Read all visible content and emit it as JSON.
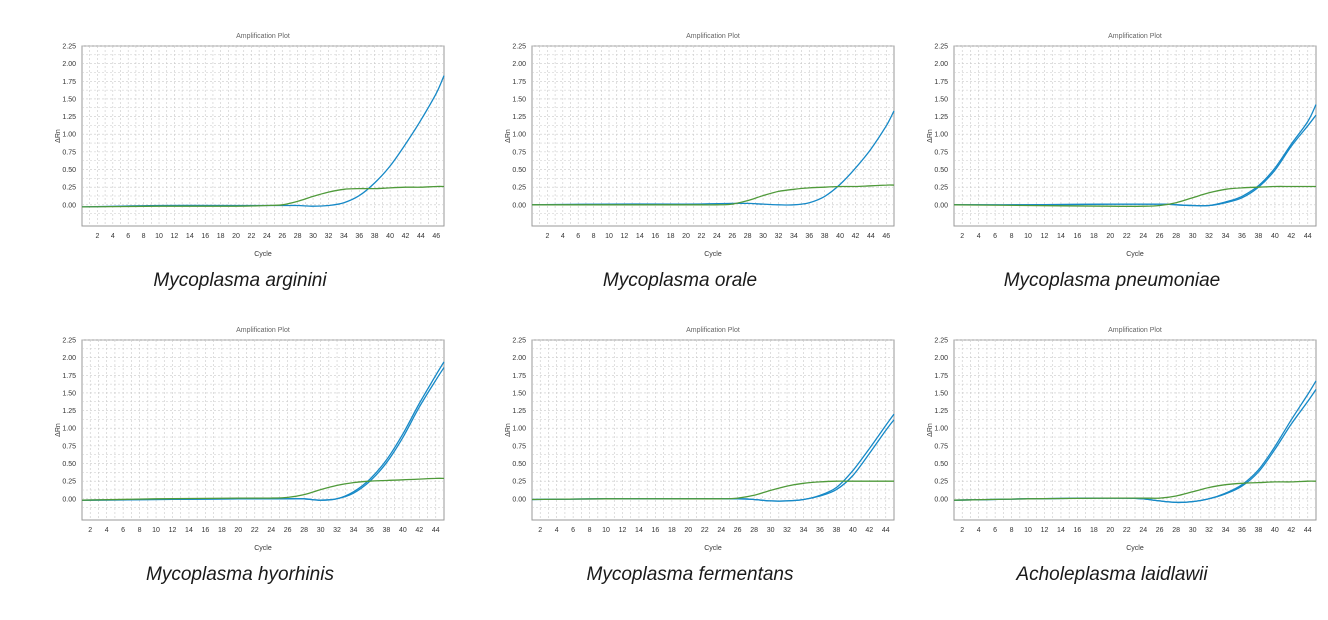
{
  "colors": {
    "target": "#1689c7",
    "control": "#4f9a3a",
    "grid": "#c9c9c9",
    "axis": "#9a9a9a",
    "text": "#333333"
  },
  "chart_data": [
    {
      "type": "line",
      "title": "Amplification Plot",
      "xlabel": "Cycle",
      "ylabel": "ΔRn",
      "caption": "Mycoplasma arginini",
      "xlim": [
        0,
        47
      ],
      "ylim": [
        -0.3,
        2.25
      ],
      "xticks": [
        "2",
        "4",
        "6",
        "8",
        "10",
        "12",
        "14",
        "16",
        "18",
        "20",
        "22",
        "24",
        "26",
        "28",
        "30",
        "32",
        "34",
        "36",
        "38",
        "40",
        "42",
        "44",
        "46"
      ],
      "yticks": [
        "0.00",
        "0.25",
        "0.50",
        "0.75",
        "1.00",
        "1.25",
        "1.50",
        "1.75",
        "2.00",
        "2.25"
      ],
      "series": [
        {
          "color": "#1689c7",
          "x": [
            0,
            10,
            20,
            26,
            28,
            30,
            32,
            34,
            36,
            38,
            40,
            42,
            44,
            46,
            47
          ],
          "y": [
            -0.03,
            -0.01,
            -0.01,
            -0.01,
            -0.01,
            -0.02,
            -0.01,
            0.03,
            0.13,
            0.31,
            0.55,
            0.86,
            1.2,
            1.58,
            1.83
          ]
        },
        {
          "color": "#4f9a3a",
          "x": [
            0,
            10,
            20,
            24,
            26,
            28,
            30,
            32,
            34,
            36,
            38,
            40,
            42,
            44,
            46,
            47
          ],
          "y": [
            -0.03,
            -0.02,
            -0.02,
            -0.01,
            0.0,
            0.05,
            0.12,
            0.18,
            0.22,
            0.23,
            0.23,
            0.24,
            0.25,
            0.25,
            0.26,
            0.26
          ]
        }
      ]
    },
    {
      "type": "line",
      "title": "Amplification Plot",
      "xlabel": "Cycle",
      "ylabel": "ΔRn",
      "caption": "Mycoplasma orale",
      "xlim": [
        0,
        47
      ],
      "ylim": [
        -0.3,
        2.25
      ],
      "xticks": [
        "2",
        "4",
        "6",
        "8",
        "10",
        "12",
        "14",
        "16",
        "18",
        "20",
        "22",
        "24",
        "26",
        "28",
        "30",
        "32",
        "34",
        "36",
        "38",
        "40",
        "42",
        "44",
        "46"
      ],
      "yticks": [
        "0.00",
        "0.25",
        "0.50",
        "0.75",
        "1.00",
        "1.25",
        "1.50",
        "1.75",
        "2.00",
        "2.25"
      ],
      "series": [
        {
          "color": "#1689c7",
          "x": [
            0,
            10,
            20,
            26,
            28,
            30,
            32,
            34,
            36,
            38,
            40,
            42,
            44,
            46,
            47
          ],
          "y": [
            0.0,
            0.01,
            0.01,
            0.02,
            0.02,
            0.01,
            0.0,
            0.0,
            0.03,
            0.12,
            0.29,
            0.52,
            0.79,
            1.12,
            1.33
          ]
        },
        {
          "color": "#4f9a3a",
          "x": [
            0,
            10,
            20,
            24,
            26,
            28,
            30,
            32,
            34,
            36,
            38,
            40,
            42,
            44,
            46,
            47
          ],
          "y": [
            0.0,
            0.0,
            0.0,
            0.0,
            0.01,
            0.06,
            0.13,
            0.19,
            0.22,
            0.24,
            0.25,
            0.26,
            0.26,
            0.27,
            0.28,
            0.28
          ]
        }
      ]
    },
    {
      "type": "line",
      "title": "Amplification Plot",
      "xlabel": "Cycle",
      "ylabel": "ΔRn",
      "caption": "Mycoplasma pneumoniae",
      "xlim": [
        1,
        45
      ],
      "ylim": [
        -0.3,
        2.25
      ],
      "xticks": [
        "2",
        "4",
        "6",
        "8",
        "10",
        "12",
        "14",
        "16",
        "18",
        "20",
        "22",
        "24",
        "26",
        "28",
        "30",
        "32",
        "34",
        "36",
        "38",
        "40",
        "42",
        "44"
      ],
      "yticks": [
        "0.00",
        "0.25",
        "0.50",
        "0.75",
        "1.00",
        "1.25",
        "1.50",
        "1.75",
        "2.00",
        "2.25"
      ],
      "series": [
        {
          "color": "#1689c7",
          "x": [
            1,
            10,
            20,
            26,
            28,
            30,
            32,
            34,
            36,
            38,
            40,
            42,
            44,
            45
          ],
          "y": [
            0.0,
            0.0,
            0.01,
            0.01,
            0.0,
            -0.01,
            -0.01,
            0.04,
            0.12,
            0.27,
            0.52,
            0.86,
            1.18,
            1.42
          ]
        },
        {
          "color": "#1689c7",
          "x": [
            1,
            10,
            20,
            26,
            28,
            30,
            32,
            34,
            36,
            38,
            40,
            42,
            44,
            45
          ],
          "y": [
            0.0,
            0.0,
            0.01,
            0.01,
            0.0,
            -0.01,
            -0.01,
            0.03,
            0.1,
            0.25,
            0.49,
            0.83,
            1.12,
            1.27
          ]
        },
        {
          "color": "#4f9a3a",
          "x": [
            1,
            10,
            20,
            24,
            26,
            28,
            30,
            32,
            34,
            36,
            38,
            40,
            42,
            44,
            45
          ],
          "y": [
            0.0,
            -0.01,
            -0.02,
            -0.02,
            -0.01,
            0.03,
            0.1,
            0.17,
            0.22,
            0.24,
            0.25,
            0.26,
            0.26,
            0.26,
            0.26
          ]
        }
      ]
    },
    {
      "type": "line",
      "title": "Amplification Plot",
      "xlabel": "Cycle",
      "ylabel": "ΔRn",
      "caption": "Mycoplasma hyorhinis",
      "xlim": [
        1,
        45
      ],
      "ylim": [
        -0.3,
        2.25
      ],
      "xticks": [
        "2",
        "4",
        "6",
        "8",
        "10",
        "12",
        "14",
        "16",
        "18",
        "20",
        "22",
        "24",
        "26",
        "28",
        "30",
        "32",
        "34",
        "36",
        "38",
        "40",
        "42",
        "44"
      ],
      "yticks": [
        "0.00",
        "0.25",
        "0.50",
        "0.75",
        "1.00",
        "1.25",
        "1.50",
        "1.75",
        "2.00",
        "2.25"
      ],
      "series": [
        {
          "color": "#1689c7",
          "x": [
            1,
            10,
            20,
            26,
            28,
            30,
            32,
            34,
            36,
            38,
            40,
            42,
            44,
            45
          ],
          "y": [
            -0.02,
            -0.01,
            0.0,
            0.0,
            0.0,
            -0.02,
            0.0,
            0.1,
            0.28,
            0.55,
            0.92,
            1.35,
            1.75,
            1.94
          ]
        },
        {
          "color": "#1689c7",
          "x": [
            1,
            10,
            20,
            26,
            28,
            30,
            32,
            34,
            36,
            38,
            40,
            42,
            44,
            45
          ],
          "y": [
            -0.02,
            -0.01,
            0.0,
            0.0,
            0.0,
            -0.02,
            0.0,
            0.08,
            0.25,
            0.51,
            0.87,
            1.3,
            1.68,
            1.86
          ]
        },
        {
          "color": "#4f9a3a",
          "x": [
            1,
            10,
            20,
            24,
            26,
            28,
            30,
            32,
            34,
            36,
            38,
            40,
            42,
            44,
            45
          ],
          "y": [
            -0.02,
            0.0,
            0.01,
            0.01,
            0.02,
            0.06,
            0.13,
            0.19,
            0.23,
            0.25,
            0.26,
            0.27,
            0.28,
            0.29,
            0.29
          ]
        }
      ]
    },
    {
      "type": "line",
      "title": "Amplification Plot",
      "xlabel": "Cycle",
      "ylabel": "ΔRn",
      "caption": "Mycoplasma fermentans",
      "xlim": [
        1,
        45
      ],
      "ylim": [
        -0.3,
        2.25
      ],
      "xticks": [
        "2",
        "4",
        "6",
        "8",
        "10",
        "12",
        "14",
        "16",
        "18",
        "20",
        "22",
        "24",
        "26",
        "28",
        "30",
        "32",
        "34",
        "36",
        "38",
        "40",
        "42",
        "44"
      ],
      "yticks": [
        "0.00",
        "0.25",
        "0.50",
        "0.75",
        "1.00",
        "1.25",
        "1.50",
        "1.75",
        "2.00",
        "2.25"
      ],
      "series": [
        {
          "color": "#1689c7",
          "x": [
            1,
            10,
            20,
            26,
            28,
            30,
            32,
            34,
            36,
            38,
            40,
            42,
            44,
            45
          ],
          "y": [
            -0.01,
            0.0,
            0.0,
            0.0,
            -0.01,
            -0.03,
            -0.03,
            -0.01,
            0.05,
            0.16,
            0.4,
            0.71,
            1.04,
            1.2
          ]
        },
        {
          "color": "#1689c7",
          "x": [
            1,
            10,
            20,
            26,
            28,
            30,
            32,
            34,
            36,
            38,
            40,
            42,
            44,
            45
          ],
          "y": [
            -0.01,
            0.0,
            0.0,
            0.0,
            -0.01,
            -0.03,
            -0.03,
            -0.01,
            0.04,
            0.13,
            0.33,
            0.64,
            0.97,
            1.12
          ]
        },
        {
          "color": "#4f9a3a",
          "x": [
            1,
            10,
            20,
            24,
            26,
            28,
            30,
            32,
            34,
            36,
            38,
            40,
            42,
            44,
            45
          ],
          "y": [
            -0.01,
            0.0,
            0.0,
            0.0,
            0.01,
            0.05,
            0.12,
            0.18,
            0.22,
            0.24,
            0.25,
            0.25,
            0.25,
            0.25,
            0.25
          ]
        }
      ]
    },
    {
      "type": "line",
      "title": "Amplification Plot",
      "xlabel": "Cycle",
      "ylabel": "ΔRn",
      "caption": "Acholeplasma laidlawii",
      "xlim": [
        1,
        45
      ],
      "ylim": [
        -0.3,
        2.25
      ],
      "xticks": [
        "2",
        "4",
        "6",
        "8",
        "10",
        "12",
        "14",
        "16",
        "18",
        "20",
        "22",
        "24",
        "26",
        "28",
        "30",
        "32",
        "34",
        "36",
        "38",
        "40",
        "42",
        "44"
      ],
      "yticks": [
        "0.00",
        "0.25",
        "0.50",
        "0.75",
        "1.00",
        "1.25",
        "1.50",
        "1.75",
        "2.00",
        "2.25"
      ],
      "series": [
        {
          "color": "#1689c7",
          "x": [
            1,
            10,
            18,
            22,
            24,
            26,
            28,
            30,
            32,
            34,
            36,
            38,
            40,
            42,
            44,
            45
          ],
          "y": [
            -0.02,
            0.0,
            0.01,
            0.01,
            0.0,
            -0.03,
            -0.05,
            -0.04,
            0.0,
            0.08,
            0.2,
            0.41,
            0.74,
            1.12,
            1.48,
            1.67
          ]
        },
        {
          "color": "#1689c7",
          "x": [
            1,
            10,
            18,
            22,
            24,
            26,
            28,
            30,
            32,
            34,
            36,
            38,
            40,
            42,
            44,
            45
          ],
          "y": [
            -0.02,
            0.0,
            0.01,
            0.01,
            0.0,
            -0.03,
            -0.05,
            -0.04,
            0.0,
            0.07,
            0.18,
            0.38,
            0.7,
            1.06,
            1.38,
            1.55
          ]
        },
        {
          "color": "#4f9a3a",
          "x": [
            1,
            10,
            20,
            24,
            26,
            28,
            30,
            32,
            34,
            36,
            38,
            40,
            42,
            44,
            45
          ],
          "y": [
            -0.02,
            0.0,
            0.01,
            0.01,
            0.01,
            0.04,
            0.1,
            0.16,
            0.2,
            0.22,
            0.23,
            0.24,
            0.24,
            0.25,
            0.25
          ]
        }
      ]
    }
  ]
}
